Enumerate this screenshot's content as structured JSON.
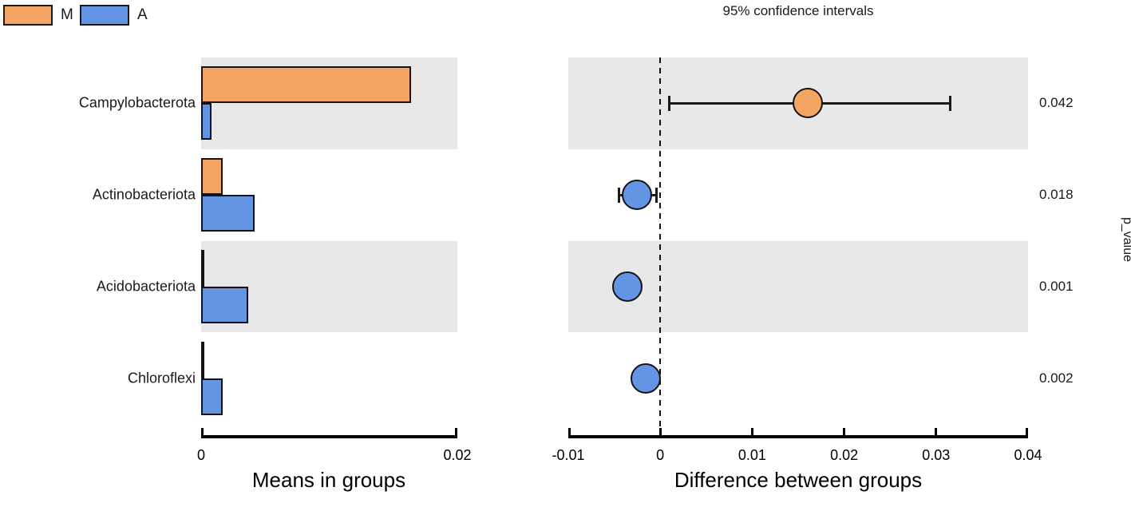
{
  "title": "95% confidence intervals",
  "legend": {
    "groups": [
      {
        "label": "M",
        "color": "#f4a561"
      },
      {
        "label": "A",
        "color": "#6494e4"
      }
    ]
  },
  "p_value_axis_label": "p_value",
  "colors": {
    "orange": "#f4a561",
    "blue": "#6494e4",
    "band": "#e8e8e8",
    "axis": "#000000"
  },
  "chart_data": {
    "type": "extended-error-bar",
    "categories": [
      "Campylobacterota",
      "Actinobacteriota",
      "Acidobacteriota",
      "Chloroflexi"
    ],
    "row_shaded": [
      true,
      false,
      true,
      false
    ],
    "left_panel": {
      "type": "bar",
      "xlabel": "Means in groups",
      "xlim": [
        0,
        0.02
      ],
      "ticks": [
        {
          "value": 0,
          "label": "0"
        },
        {
          "value": 0.02,
          "label": "0.02"
        }
      ],
      "series": [
        {
          "name": "M",
          "color": "#f4a561",
          "values": [
            0.0164,
            0.0017,
            0.0001,
            0.0001
          ]
        },
        {
          "name": "A",
          "color": "#6494e4",
          "values": [
            0.0008,
            0.0042,
            0.0037,
            0.0017
          ]
        }
      ]
    },
    "right_panel": {
      "type": "scatter-ci",
      "title": "95% confidence intervals",
      "xlabel": "Difference between groups",
      "xlim": [
        -0.01,
        0.04
      ],
      "zero_line": true,
      "ticks": [
        {
          "value": -0.01,
          "label": "-0.01"
        },
        {
          "value": 0,
          "label": "0"
        },
        {
          "value": 0.01,
          "label": "0.01"
        },
        {
          "value": 0.02,
          "label": "0.02"
        },
        {
          "value": 0.03,
          "label": "0.03"
        },
        {
          "value": 0.04,
          "label": "0.04"
        }
      ],
      "points": [
        {
          "category": "Campylobacterota",
          "value": 0.016,
          "ci_low": 0.001,
          "ci_high": 0.0315,
          "group": "M",
          "color": "#f4a561"
        },
        {
          "category": "Actinobacteriota",
          "value": -0.0025,
          "ci_low": -0.0045,
          "ci_high": -0.0004,
          "group": "A",
          "color": "#6494e4"
        },
        {
          "category": "Acidobacteriota",
          "value": -0.0036,
          "ci_low": -0.0043,
          "ci_high": -0.0028,
          "group": "A",
          "color": "#6494e4"
        },
        {
          "category": "Chloroflexi",
          "value": -0.0016,
          "ci_low": -0.0022,
          "ci_high": -0.0004,
          "group": "A",
          "color": "#6494e4"
        }
      ]
    },
    "p_values": [
      "0.042",
      "0.018",
      "0.001",
      "0.002"
    ]
  }
}
